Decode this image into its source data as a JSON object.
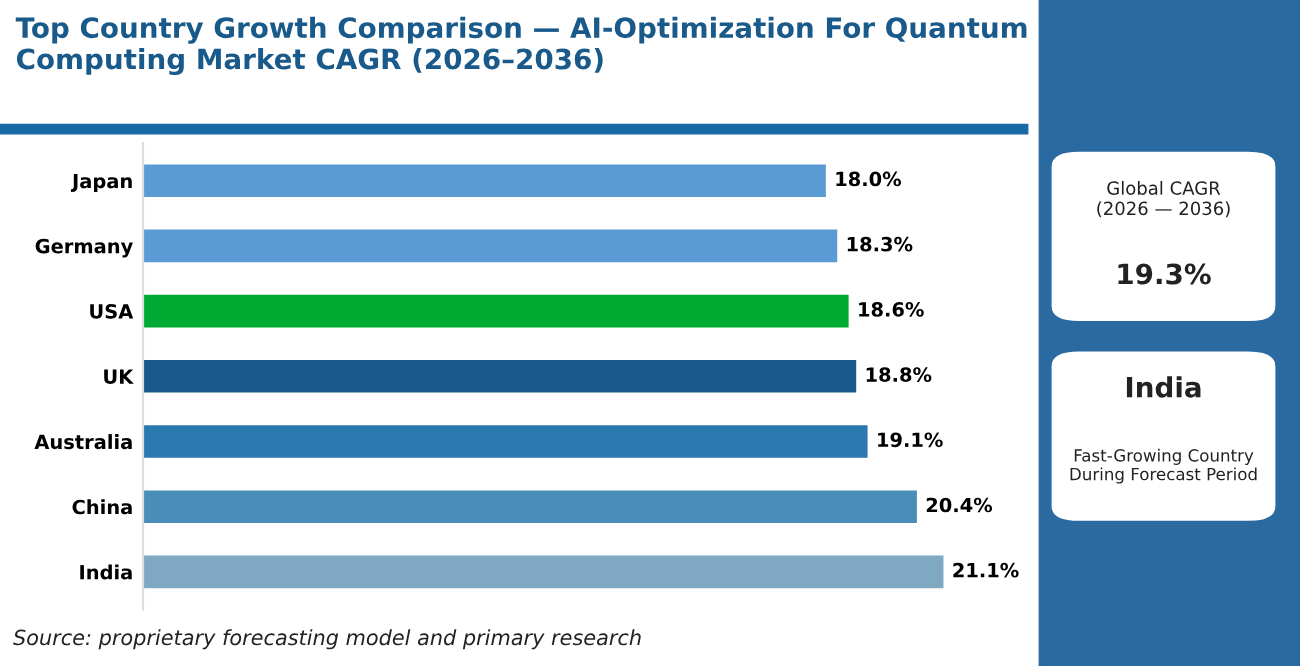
{
  "chart_data": {
    "type": "bar",
    "orientation": "horizontal",
    "title": "Top Country Growth Comparison — AI-Optimization For Quantum Computing Market CAGR (2026–2036)",
    "categories": [
      "Japan",
      "Germany",
      "USA",
      "UK",
      "Australia",
      "China",
      "India"
    ],
    "values": [
      18.0,
      18.3,
      18.6,
      18.8,
      19.1,
      20.4,
      21.1
    ],
    "colors": [
      "#5b9bd5",
      "#5b9bd5",
      "#00aa33",
      "#1a5a8a",
      "#2a78b0",
      "#4a8db8",
      "#7fa8c2"
    ],
    "value_labels": [
      "18.0%",
      "18.3%",
      "18.6%",
      "18.8%",
      "19.1%",
      "20.4%",
      "21.1%"
    ],
    "annotations": [
      "Global CAGR\n(2026 — 2036)",
      "19.3%",
      "India",
      "Fast-Growing Country\nDuring Forecast Period",
      "Source: proprietary forecasting model and primary research"
    ],
    "grid": false,
    "legend": false
  }
}
